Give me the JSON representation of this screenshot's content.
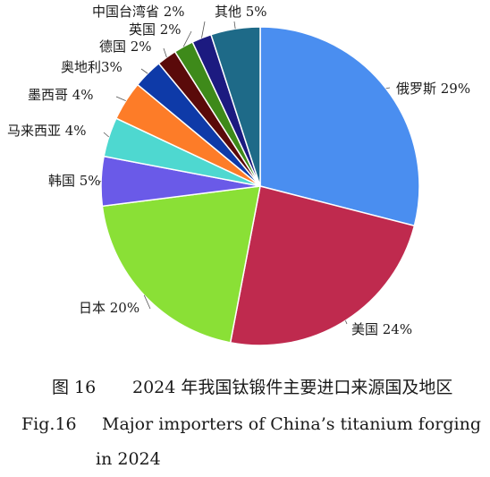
{
  "chart_data": {
    "type": "pie",
    "categories": [
      "俄罗斯",
      "美国",
      "日本",
      "韩国",
      "马来西亚",
      "墨西哥",
      "奥地利",
      "德国",
      "英国",
      "中国台湾省",
      "其他"
    ],
    "values": [
      29,
      24,
      20,
      5,
      4,
      4,
      3,
      2,
      2,
      2,
      5
    ],
    "labels": [
      "俄罗斯 29%",
      "美国 24%",
      "日本 20%",
      "韩国 5%",
      "马来西亚 4%",
      "墨西哥 4%",
      "奥地利3%",
      "德国 2%",
      "英国 2%",
      "中国台湾省 2%",
      "其他 5%"
    ],
    "colors": [
      "#4a8ef0",
      "#bf2a4e",
      "#8ae036",
      "#6a5ae8",
      "#4ed8d0",
      "#fd7c28",
      "#0e3aa8",
      "#5a0a0a",
      "#3e8a1a",
      "#1c1a80",
      "#1e6a88"
    ],
    "start": "12 o'clock",
    "direction": "clockwise"
  },
  "caption": {
    "cn_number": "图 16",
    "cn_text": "2024 年我国钛锻件主要进口来源国及地区",
    "en_number": "Fig.16",
    "en_text": "Major importers of China’s titanium forging",
    "en_text_2": "in 2024"
  }
}
